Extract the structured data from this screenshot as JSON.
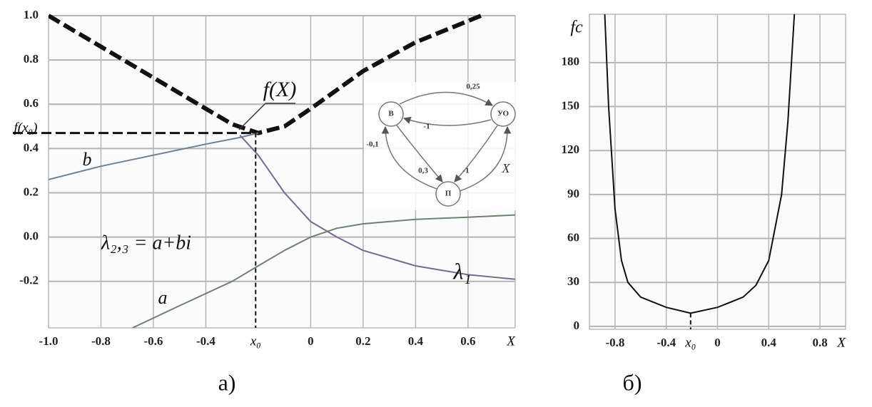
{
  "chart_data": [
    {
      "type": "line",
      "caption": "а)",
      "series": [
        {
          "name": "f(X)",
          "color": "#111111",
          "line_style": "dashed",
          "x": [
            -1.0,
            -0.8,
            -0.6,
            -0.4,
            -0.3,
            -0.2,
            -0.1,
            0,
            0.2,
            0.4,
            0.65
          ],
          "values": [
            1.0,
            0.86,
            0.72,
            0.58,
            0.51,
            0.47,
            0.5,
            0.58,
            0.75,
            0.88,
            1.0
          ]
        },
        {
          "name": "b",
          "color": "#6f8090",
          "line_style": "solid",
          "x": [
            -1.0,
            -0.8,
            -0.6,
            -0.4,
            -0.27,
            -0.2
          ],
          "values": [
            0.26,
            0.32,
            0.37,
            0.42,
            0.45,
            0.47
          ]
        },
        {
          "name": "λ₁",
          "color": "#7a6a8a",
          "line_style": "solid",
          "x": [
            -0.27,
            -0.2,
            -0.1,
            0,
            0.1,
            0.2,
            0.4,
            0.6,
            0.78
          ],
          "values": [
            0.46,
            0.37,
            0.2,
            0.07,
            0.0,
            -0.06,
            -0.13,
            -0.17,
            -0.19
          ]
        },
        {
          "name": "a",
          "color": "#6f806f",
          "line_style": "solid",
          "x": [
            -0.68,
            -0.5,
            -0.3,
            -0.2,
            -0.1,
            0,
            0.1,
            0.2,
            0.4,
            0.6,
            0.78
          ],
          "values": [
            -0.41,
            -0.31,
            -0.2,
            -0.13,
            -0.06,
            0.0,
            0.04,
            0.06,
            0.08,
            0.09,
            0.1
          ]
        }
      ],
      "annotations": [
        "λ₂,₃ = a+bi"
      ],
      "marker": {
        "x": -0.21,
        "y": 0.47,
        "x_label": "x₀",
        "y_label": "f(x₀)"
      },
      "x_label": "X",
      "xlim": [
        -1.0,
        0.78
      ],
      "ylim": [
        -0.41,
        1.0
      ],
      "xticks": [
        {
          "value": -1.0,
          "label": "-1.0"
        },
        -0.8,
        -0.6,
        -0.4,
        {
          "value": 0,
          "label": "0"
        },
        0.2,
        0.4,
        0.6
      ],
      "yticks": [
        {
          "value": 1.0,
          "label": "1.0"
        },
        0.8,
        0.6,
        0.4,
        0.2,
        {
          "value": 0,
          "label": "0.0"
        },
        -0.2
      ],
      "grid": true
    },
    {
      "type": "line",
      "caption": "б)",
      "series": [
        {
          "name": "fc",
          "color": "#111111",
          "line_style": "solid",
          "x": [
            -0.88,
            -0.85,
            -0.8,
            -0.75,
            -0.7,
            -0.6,
            -0.4,
            -0.21,
            0,
            0.2,
            0.3,
            0.4,
            0.5,
            0.55,
            0.6
          ],
          "values": [
            213,
            150,
            80,
            45,
            30,
            20,
            13,
            9,
            13,
            20,
            28,
            45,
            90,
            140,
            213
          ]
        }
      ],
      "annotations": [],
      "marker": {
        "x": -0.21,
        "y": 9,
        "x_label": "x₀"
      },
      "x_label": "X",
      "xlim": [
        -1.0,
        1.0
      ],
      "ylim": [
        -2,
        213
      ],
      "xticks": [
        -0.8,
        -0.4,
        0,
        0.4,
        0.8
      ],
      "yticks": [
        0,
        30,
        60,
        90,
        120,
        150,
        180
      ],
      "grid": true
    }
  ],
  "inset": {
    "nodes": [
      "В",
      "УО",
      "П"
    ],
    "edges": [
      "0,25",
      "-1",
      "-0,1",
      "0,3",
      "-1",
      "X"
    ]
  }
}
